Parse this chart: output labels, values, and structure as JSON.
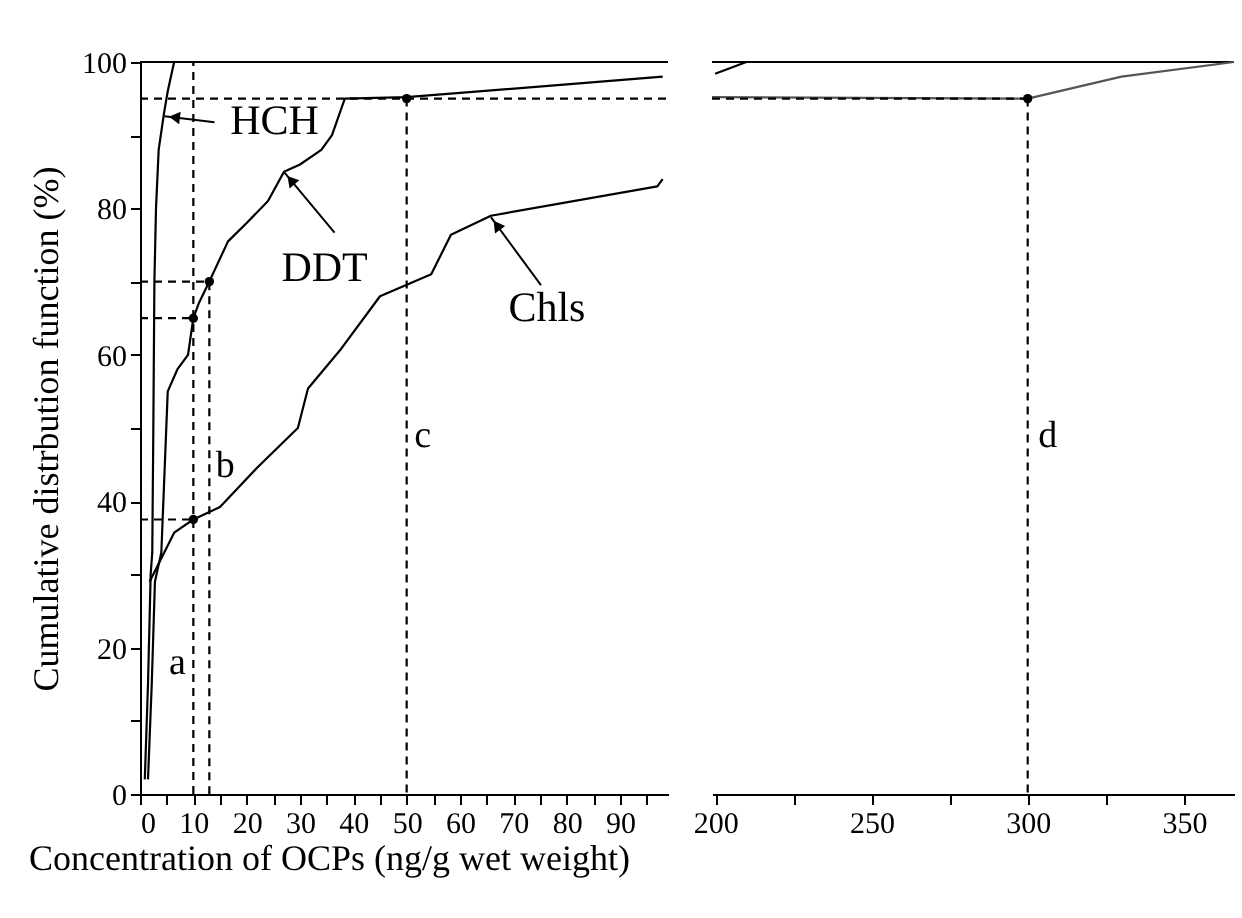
{
  "chart_data": [
    {
      "type": "line",
      "xlabel": "Concentration of OCPs (ng/g wet weight)",
      "ylabel": "Cumulative distrbution function (%)",
      "xlim": [
        0,
        99
      ],
      "ylim": [
        0,
        100
      ],
      "xticks": [
        0,
        {
          "value": 5,
          "label": null
        },
        10,
        {
          "value": 15,
          "label": null
        },
        20,
        {
          "value": 25,
          "label": null
        },
        30,
        {
          "value": 35,
          "label": null
        },
        40,
        {
          "value": 45,
          "label": null
        },
        50,
        {
          "value": 55,
          "label": null
        },
        60,
        {
          "value": 65,
          "label": null
        },
        70,
        {
          "value": 75,
          "label": null
        },
        80,
        {
          "value": 85,
          "label": null
        },
        90,
        {
          "value": 95,
          "label": null
        }
      ],
      "yticks": [
        0,
        {
          "value": 10,
          "label": null
        },
        20,
        {
          "value": 30,
          "label": null
        },
        40,
        {
          "value": 50,
          "label": null
        },
        60,
        {
          "value": 70,
          "label": null
        },
        80,
        {
          "value": 90,
          "label": null
        },
        100
      ],
      "grid": false,
      "series": [
        {
          "type": "line",
          "color": "#000000",
          "marker": "none",
          "line_style": "solid",
          "x": [
            0.9,
            1.5,
            2.0,
            2.3,
            2.5,
            2.7,
            3.0,
            3.5,
            4.5,
            5.2,
            6.4
          ],
          "values": [
            2,
            15,
            30,
            33,
            50,
            70,
            80,
            88,
            93,
            96,
            100
          ]
        },
        {
          "type": "line",
          "color": "#000000",
          "marker": "none",
          "line_style": "solid",
          "x": [
            1.5,
            2.2,
            2.8,
            3.4,
            4,
            5.2,
            7,
            9,
            10,
            11,
            13,
            16.5,
            20,
            24,
            27,
            30,
            34,
            36,
            38.4,
            50,
            98
          ],
          "values": [
            2,
            15,
            29,
            31,
            33,
            55,
            58,
            60,
            65,
            67,
            70,
            75.5,
            78,
            81,
            85,
            86,
            88,
            90,
            95,
            95.2,
            98
          ]
        },
        {
          "type": "line",
          "color": "#000000",
          "marker": "none",
          "line_style": "solid",
          "x": [
            1.8,
            6.4,
            10,
            15,
            22,
            29.6,
            31.5,
            37.7,
            45,
            54.6,
            58.3,
            65.8,
            97,
            98
          ],
          "values": [
            29,
            35.7,
            37.5,
            39.2,
            44.6,
            50,
            55.4,
            60.8,
            68,
            71,
            76.4,
            79,
            83,
            84
          ]
        },
        {
          "type": "line",
          "color": "#000000",
          "marker": "none",
          "line_style": "dashed",
          "x": [
            0,
            99
          ],
          "values": [
            95,
            95
          ]
        },
        {
          "type": "line",
          "color": "#000000",
          "marker": "none",
          "line_style": "dashed",
          "x": [
            10,
            10
          ],
          "values": [
            0,
            100
          ]
        },
        {
          "type": "line",
          "color": "#000000",
          "marker": "none",
          "line_style": "dashed",
          "x": [
            0,
            10
          ],
          "values": [
            65,
            65
          ]
        },
        {
          "type": "line",
          "color": "#000000",
          "marker": "none",
          "line_style": "dashed",
          "x": [
            0,
            10
          ],
          "values": [
            37.5,
            37.5
          ]
        },
        {
          "type": "line",
          "color": "#000000",
          "marker": "none",
          "line_style": "dashed",
          "x": [
            0,
            13,
            13
          ],
          "values": [
            70,
            70,
            0
          ]
        },
        {
          "type": "line",
          "color": "#000000",
          "marker": "none",
          "line_style": "dashed",
          "x": [
            50,
            50
          ],
          "values": [
            95,
            0
          ]
        },
        {
          "type": "scatter",
          "color": "#000000",
          "marker": "circle",
          "x": [
            10,
            10,
            13,
            50
          ],
          "values": [
            37.5,
            65,
            70,
            95
          ]
        }
      ],
      "annotations": [
        {
          "text": "HCH",
          "x": 4.6,
          "y": 92.6
        },
        {
          "text": "DDT",
          "x": 27.1,
          "y": 84.9
        },
        {
          "text": "Chls",
          "x": 65.8,
          "y": 78.8
        },
        {
          "text": "a",
          "x": 10,
          "y": 18
        },
        {
          "text": "b",
          "x": 13,
          "y": 45
        },
        {
          "text": "c",
          "x": 50,
          "y": 49
        }
      ]
    },
    {
      "type": "line",
      "xlim": [
        199,
        366
      ],
      "ylim": [
        0,
        100
      ],
      "xticks": [
        200,
        {
          "value": 225,
          "label": null
        },
        250,
        {
          "value": 275,
          "label": null
        },
        300,
        {
          "value": 325,
          "label": null
        },
        350
      ],
      "tick_labels": "x",
      "grid": false,
      "series": [
        {
          "type": "line",
          "color": "#000000",
          "marker": "none",
          "line_style": "solid",
          "x": [
            200,
            210
          ],
          "values": [
            98.4,
            100
          ]
        },
        {
          "type": "line",
          "color": "#555555",
          "marker": "none",
          "line_style": "solid",
          "x": [
            199,
            300,
            330,
            366
          ],
          "values": [
            95.2,
            95,
            98,
            100
          ]
        },
        {
          "type": "line",
          "color": "#000000",
          "marker": "none",
          "line_style": "dashed",
          "x": [
            199,
            300
          ],
          "values": [
            95,
            95
          ]
        },
        {
          "type": "line",
          "color": "#000000",
          "marker": "none",
          "line_style": "dashed",
          "x": [
            300,
            300
          ],
          "values": [
            95,
            0
          ]
        },
        {
          "type": "scatter",
          "color": "#000000",
          "marker": "circle",
          "x": [
            300
          ],
          "values": [
            95
          ]
        }
      ],
      "annotations": [
        {
          "text": "d",
          "x": 300,
          "y": 49
        }
      ]
    }
  ]
}
